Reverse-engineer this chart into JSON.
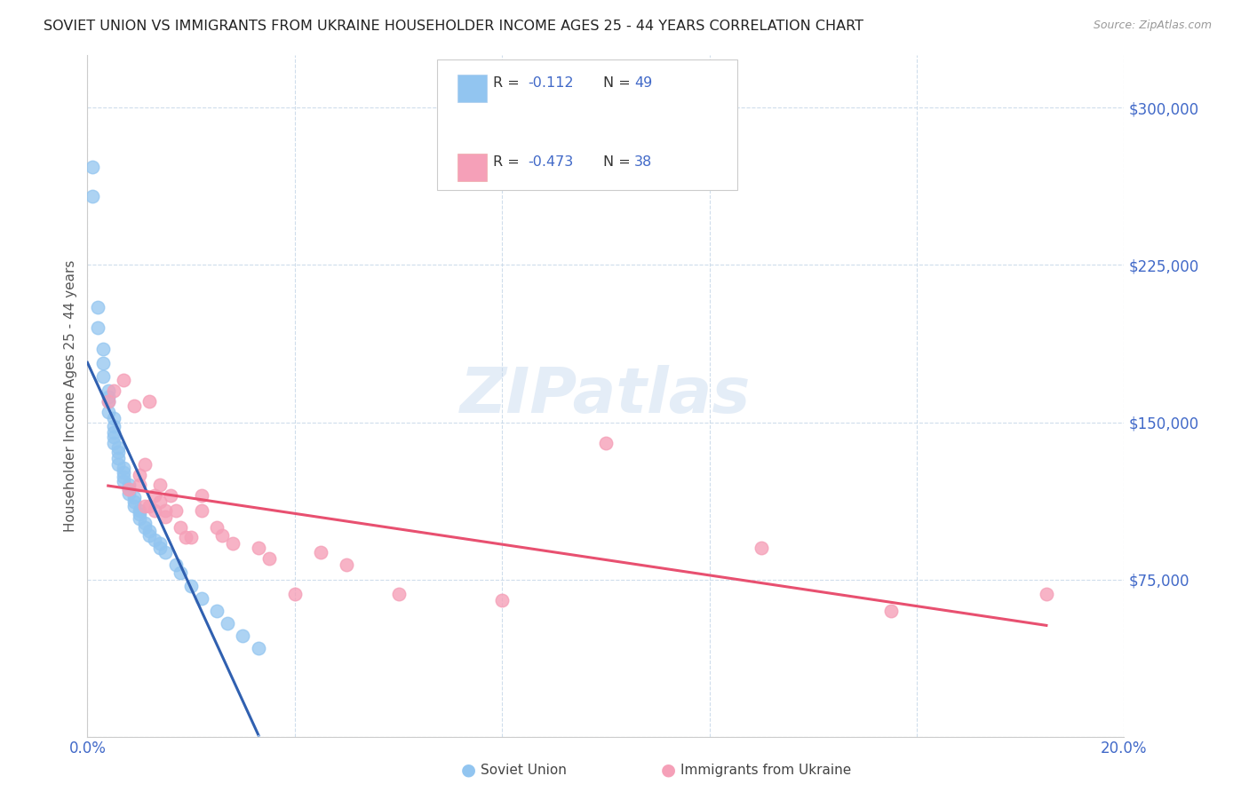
{
  "title": "SOVIET UNION VS IMMIGRANTS FROM UKRAINE HOUSEHOLDER INCOME AGES 25 - 44 YEARS CORRELATION CHART",
  "source": "Source: ZipAtlas.com",
  "ylabel": "Householder Income Ages 25 - 44 years",
  "xlim": [
    0.0,
    0.2
  ],
  "ylim": [
    0,
    325000
  ],
  "xticks": [
    0.0,
    0.04,
    0.08,
    0.12,
    0.16,
    0.2
  ],
  "yticks": [
    0,
    75000,
    150000,
    225000,
    300000
  ],
  "blue_color": "#92C5F0",
  "pink_color": "#F5A0B8",
  "blue_line_color": "#3060B0",
  "pink_line_color": "#E85070",
  "blue_dashed_color": "#A8C8F0",
  "text_blue": "#4169C8",
  "background_color": "#FFFFFF",
  "soviet_x": [
    0.001,
    0.001,
    0.002,
    0.002,
    0.003,
    0.003,
    0.003,
    0.004,
    0.004,
    0.004,
    0.004,
    0.005,
    0.005,
    0.005,
    0.005,
    0.005,
    0.006,
    0.006,
    0.006,
    0.006,
    0.007,
    0.007,
    0.007,
    0.007,
    0.008,
    0.008,
    0.008,
    0.009,
    0.009,
    0.009,
    0.01,
    0.01,
    0.01,
    0.011,
    0.011,
    0.012,
    0.012,
    0.013,
    0.014,
    0.014,
    0.015,
    0.017,
    0.018,
    0.02,
    0.022,
    0.025,
    0.027,
    0.03,
    0.033
  ],
  "soviet_y": [
    272000,
    258000,
    205000,
    195000,
    185000,
    178000,
    172000,
    165000,
    162000,
    160000,
    155000,
    152000,
    148000,
    145000,
    143000,
    140000,
    138000,
    136000,
    133000,
    130000,
    128000,
    126000,
    124000,
    122000,
    120000,
    118000,
    116000,
    114000,
    112000,
    110000,
    108000,
    106000,
    104000,
    102000,
    100000,
    98000,
    96000,
    94000,
    92000,
    90000,
    88000,
    82000,
    78000,
    72000,
    66000,
    60000,
    54000,
    48000,
    42000
  ],
  "ukraine_x": [
    0.004,
    0.005,
    0.007,
    0.008,
    0.009,
    0.01,
    0.01,
    0.011,
    0.011,
    0.012,
    0.012,
    0.013,
    0.013,
    0.014,
    0.014,
    0.015,
    0.015,
    0.016,
    0.017,
    0.018,
    0.019,
    0.02,
    0.022,
    0.022,
    0.025,
    0.026,
    0.028,
    0.033,
    0.035,
    0.04,
    0.045,
    0.05,
    0.06,
    0.08,
    0.1,
    0.13,
    0.155,
    0.185
  ],
  "ukraine_y": [
    160000,
    165000,
    170000,
    118000,
    158000,
    125000,
    120000,
    110000,
    130000,
    160000,
    110000,
    115000,
    108000,
    120000,
    112000,
    108000,
    105000,
    115000,
    108000,
    100000,
    95000,
    95000,
    115000,
    108000,
    100000,
    96000,
    92000,
    90000,
    85000,
    68000,
    88000,
    82000,
    68000,
    65000,
    140000,
    90000,
    60000,
    68000
  ]
}
